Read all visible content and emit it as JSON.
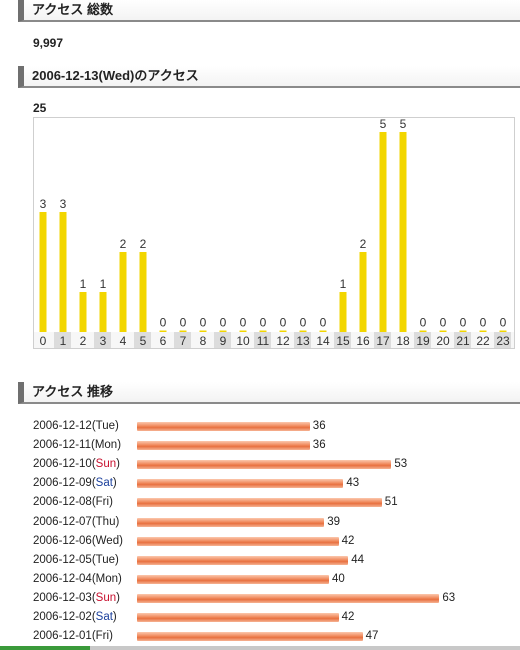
{
  "total_access": {
    "heading": "アクセス 総数",
    "value": "9,997"
  },
  "daily": {
    "heading": "2006-12-13(Wed)のアクセス",
    "value": "25"
  },
  "trend": {
    "heading": "アクセス 推移",
    "rows": [
      {
        "date": "2006-12-12",
        "dow": "Tue",
        "count": 36
      },
      {
        "date": "2006-12-11",
        "dow": "Mon",
        "count": 36
      },
      {
        "date": "2006-12-10",
        "dow": "Sun",
        "count": 53
      },
      {
        "date": "2006-12-09",
        "dow": "Sat",
        "count": 43
      },
      {
        "date": "2006-12-08",
        "dow": "Fri",
        "count": 51
      },
      {
        "date": "2006-12-07",
        "dow": "Thu",
        "count": 39
      },
      {
        "date": "2006-12-06",
        "dow": "Wed",
        "count": 42
      },
      {
        "date": "2006-12-05",
        "dow": "Tue",
        "count": 44
      },
      {
        "date": "2006-12-04",
        "dow": "Mon",
        "count": 40
      },
      {
        "date": "2006-12-03",
        "dow": "Sun",
        "count": 63
      },
      {
        "date": "2006-12-02",
        "dow": "Sat",
        "count": 42
      },
      {
        "date": "2006-12-01",
        "dow": "Fri",
        "count": 47
      }
    ]
  },
  "colors": {
    "hour_bar": "#f2d600",
    "trend_bar": "#ee7f4e",
    "sunday": "#c8102e",
    "saturday": "#1a3f9c"
  },
  "chart_data": [
    {
      "type": "bar",
      "categories": [
        "0",
        "1",
        "2",
        "3",
        "4",
        "5",
        "6",
        "7",
        "8",
        "9",
        "10",
        "11",
        "12",
        "13",
        "14",
        "15",
        "16",
        "17",
        "18",
        "19",
        "20",
        "21",
        "22",
        "23"
      ],
      "values": [
        3,
        3,
        1,
        1,
        2,
        2,
        0,
        0,
        0,
        0,
        0,
        0,
        0,
        0,
        0,
        1,
        2,
        5,
        5,
        0,
        0,
        0,
        0,
        0
      ],
      "ylim": [
        0,
        5
      ],
      "grid": false
    },
    {
      "type": "bar",
      "orientation": "horizontal",
      "categories": [
        "2006-12-12(Tue)",
        "2006-12-11(Mon)",
        "2006-12-10(Sun)",
        "2006-12-09(Sat)",
        "2006-12-08(Fri)",
        "2006-12-07(Thu)",
        "2006-12-06(Wed)",
        "2006-12-05(Tue)",
        "2006-12-04(Mon)",
        "2006-12-03(Sun)",
        "2006-12-02(Sat)",
        "2006-12-01(Fri)"
      ],
      "values": [
        36,
        36,
        53,
        43,
        51,
        39,
        42,
        44,
        40,
        63,
        42,
        47
      ],
      "grid": false
    }
  ]
}
